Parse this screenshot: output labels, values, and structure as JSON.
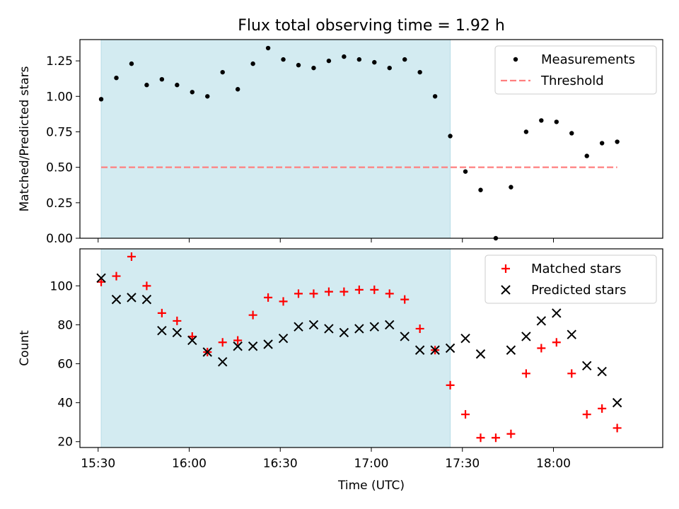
{
  "chart_data": [
    {
      "type": "scatter",
      "title": "Flux total observing time = 1.92 h",
      "xlabel": "",
      "ylabel": "Matched/Predicted stars",
      "xlim": [
        "15:24",
        "18:36"
      ],
      "ylim": [
        0,
        1.4
      ],
      "yticks": [
        0.0,
        0.25,
        0.5,
        0.75,
        1.0,
        1.25
      ],
      "ytick_labels": [
        "0.00",
        "0.25",
        "0.50",
        "0.75",
        "1.00",
        "1.25"
      ],
      "shaded_region": {
        "x": [
          "15:31",
          "17:26"
        ],
        "color": "#d3ebf1"
      },
      "legend": {
        "position": "top-right",
        "entries": [
          "Measurements",
          "Threshold"
        ]
      },
      "series": [
        {
          "name": "Measurements",
          "marker": "dot",
          "color": "#000000",
          "x": [
            "15:31",
            "15:36",
            "15:41",
            "15:46",
            "15:51",
            "15:56",
            "16:01",
            "16:06",
            "16:11",
            "16:16",
            "16:21",
            "16:26",
            "16:31",
            "16:36",
            "16:41",
            "16:46",
            "16:51",
            "16:56",
            "17:01",
            "17:06",
            "17:11",
            "17:16",
            "17:21",
            "17:26",
            "17:31",
            "17:36",
            "17:41",
            "17:46",
            "17:51",
            "17:56",
            "18:01",
            "18:06",
            "18:11",
            "18:16",
            "18:21"
          ],
          "values": [
            0.98,
            1.13,
            1.23,
            1.08,
            1.12,
            1.08,
            1.03,
            1.0,
            1.17,
            1.05,
            1.23,
            1.34,
            1.26,
            1.22,
            1.2,
            1.25,
            1.28,
            1.26,
            1.24,
            1.2,
            1.26,
            1.17,
            1.0,
            0.72,
            0.47,
            0.34,
            0.0,
            0.36,
            0.75,
            0.83,
            0.82,
            0.74,
            0.58,
            0.67,
            0.68
          ]
        },
        {
          "name": "Threshold",
          "marker": "dashed-line",
          "color": "#ff7f7f",
          "x": [
            "15:31",
            "18:21"
          ],
          "values": [
            0.5,
            0.5
          ]
        }
      ]
    },
    {
      "type": "scatter",
      "title": "",
      "xlabel": "Time (UTC)",
      "ylabel": "Count",
      "xlim": [
        "15:24",
        "18:36"
      ],
      "ylim": [
        17,
        119
      ],
      "yticks": [
        20,
        40,
        60,
        80,
        100
      ],
      "ytick_labels": [
        "20",
        "40",
        "60",
        "80",
        "100"
      ],
      "xticks": [
        "15:30",
        "16:00",
        "16:30",
        "17:00",
        "17:30",
        "18:00"
      ],
      "xtick_labels": [
        "15:30",
        "16:00",
        "16:30",
        "17:00",
        "17:30",
        "18:00"
      ],
      "shaded_region": {
        "x": [
          "15:31",
          "17:26"
        ],
        "color": "#d3ebf1"
      },
      "legend": {
        "position": "top-right",
        "entries": [
          "Matched stars",
          "Predicted stars"
        ]
      },
      "series": [
        {
          "name": "Matched stars",
          "marker": "plus",
          "color": "#ff0000",
          "x": [
            "15:31",
            "15:36",
            "15:41",
            "15:46",
            "15:51",
            "15:56",
            "16:01",
            "16:06",
            "16:11",
            "16:16",
            "16:21",
            "16:26",
            "16:31",
            "16:36",
            "16:41",
            "16:46",
            "16:51",
            "16:56",
            "17:01",
            "17:06",
            "17:11",
            "17:16",
            "17:21",
            "17:26",
            "17:31",
            "17:36",
            "17:41",
            "17:46",
            "17:51",
            "17:56",
            "18:01",
            "18:06",
            "18:11",
            "18:16",
            "18:21"
          ],
          "values": [
            102,
            105,
            115,
            100,
            86,
            82,
            74,
            66,
            71,
            72,
            85,
            94,
            92,
            96,
            96,
            97,
            97,
            98,
            98,
            96,
            93,
            78,
            67,
            49,
            34,
            22,
            22,
            24,
            55,
            68,
            71,
            55,
            34,
            37,
            27
          ]
        },
        {
          "name": "Predicted stars",
          "marker": "x",
          "color": "#000000",
          "x": [
            "15:31",
            "15:36",
            "15:41",
            "15:46",
            "15:51",
            "15:56",
            "16:01",
            "16:06",
            "16:11",
            "16:16",
            "16:21",
            "16:26",
            "16:31",
            "16:36",
            "16:41",
            "16:46",
            "16:51",
            "16:56",
            "17:01",
            "17:06",
            "17:11",
            "17:16",
            "17:21",
            "17:26",
            "17:31",
            "17:36",
            "17:46",
            "17:51",
            "17:56",
            "18:01",
            "18:06",
            "18:11",
            "18:16",
            "18:21"
          ],
          "values": [
            104,
            93,
            94,
            93,
            77,
            76,
            72,
            66,
            61,
            69,
            69,
            70,
            73,
            79,
            80,
            78,
            76,
            78,
            79,
            80,
            74,
            67,
            67,
            68,
            73,
            65,
            67,
            74,
            82,
            86,
            75,
            59,
            56,
            40
          ]
        }
      ]
    }
  ]
}
